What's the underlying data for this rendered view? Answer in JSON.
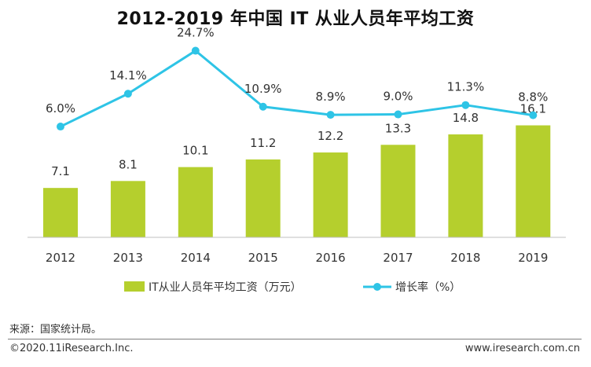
{
  "title": "2012-2019 年中国 IT 从业人员年平均工资",
  "chart_data": {
    "type": "bar",
    "categories": [
      "2012",
      "2013",
      "2014",
      "2015",
      "2016",
      "2017",
      "2018",
      "2019"
    ],
    "series": [
      {
        "name": "IT从业人员年平均工资（万元）",
        "type": "bar",
        "color": "#b5cf2d",
        "values": [
          7.1,
          8.1,
          10.1,
          11.2,
          12.2,
          13.3,
          14.8,
          16.1
        ],
        "labels": [
          "7.1",
          "8.1",
          "10.1",
          "11.2",
          "12.2",
          "13.3",
          "14.8",
          "16.1"
        ]
      },
      {
        "name": "增长率（%）",
        "type": "line",
        "color": "#2ec4e6",
        "axis": "secondary",
        "values": [
          6.0,
          14.1,
          24.7,
          10.9,
          8.9,
          9.0,
          11.3,
          8.8
        ],
        "labels": [
          "6.0%",
          "14.1%",
          "24.7%",
          "10.9%",
          "8.9%",
          "9.0%",
          "11.3%",
          "8.8%"
        ]
      }
    ],
    "legend_position": "bottom",
    "grid": false
  },
  "source": "来源：国家统计局。",
  "copyright": "©2020.11iResearch.Inc.",
  "website": "www.iresearch.com.cn"
}
